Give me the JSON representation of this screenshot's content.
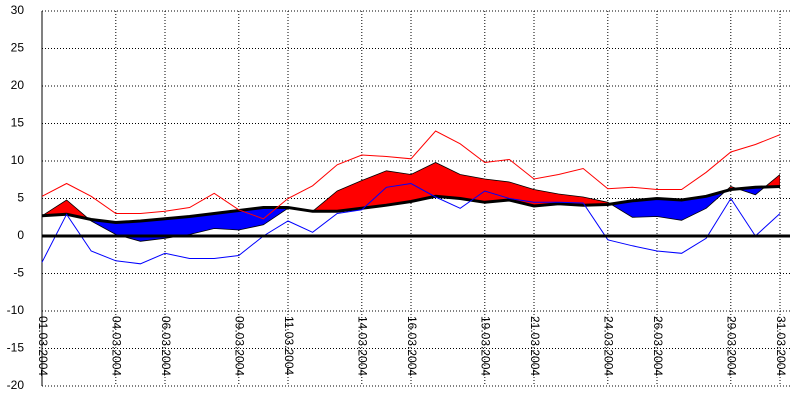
{
  "chart_data": {
    "type": "line",
    "categories": [
      "01.03.2004",
      null,
      null,
      "04.03.2004",
      null,
      "06.03.2004",
      null,
      null,
      "09.03.2004",
      null,
      "11.03.2004",
      null,
      null,
      "14.03.2004",
      null,
      "16.03.2004",
      null,
      null,
      "19.03.2004",
      null,
      "21.03.2004",
      null,
      null,
      "24.03.2004",
      null,
      "26.03.2004",
      null,
      null,
      "29.03.2004",
      null,
      "31.03.2004"
    ],
    "series": [
      {
        "color": "#000000",
        "width": 3,
        "values": [
          2.7,
          2.9,
          2.2,
          1.8,
          2.0,
          2.3,
          2.6,
          3.0,
          3.4,
          3.8,
          3.8,
          3.3,
          3.3,
          3.7,
          4.1,
          4.6,
          5.3,
          5.0,
          4.5,
          4.8,
          4.0,
          4.3,
          4.1,
          4.2,
          4.7,
          5.0,
          4.8,
          5.3,
          6.2,
          6.5,
          6.6
        ]
      },
      {
        "color": "#000000",
        "width": 0.8,
        "values": [
          2.7,
          4.8,
          2.0,
          0.2,
          -0.7,
          -0.3,
          0.2,
          1.0,
          0.8,
          1.5,
          3.7,
          3.3,
          6.0,
          7.4,
          8.7,
          8.2,
          9.8,
          8.2,
          7.6,
          7.2,
          6.2,
          5.6,
          5.2,
          4.5,
          2.5,
          2.6,
          2.1,
          3.7,
          6.6,
          5.5,
          8.2
        ]
      },
      {
        "color": "#ff0000",
        "width": 1,
        "values": [
          5.3,
          7.0,
          5.3,
          3.0,
          3.0,
          3.3,
          3.8,
          5.7,
          3.5,
          2.3,
          5.0,
          6.7,
          9.5,
          10.8,
          10.6,
          10.3,
          14.0,
          12.3,
          9.8,
          10.2,
          7.6,
          8.2,
          9.0,
          6.3,
          6.5,
          6.2,
          6.2,
          8.5,
          11.2,
          12.2,
          13.5
        ]
      },
      {
        "color": "#0000ff",
        "width": 1,
        "values": [
          -3.5,
          2.9,
          -2.0,
          -3.3,
          -3.7,
          -2.3,
          -3.0,
          -3.0,
          -2.6,
          0.0,
          2.0,
          0.5,
          3.0,
          3.5,
          6.5,
          7.0,
          5.2,
          3.7,
          6.0,
          5.0,
          4.5,
          4.5,
          4.4,
          -0.5,
          -1.3,
          -2.0,
          -2.3,
          -0.3,
          5.0,
          0.0,
          3.0
        ]
      }
    ],
    "fill_between": {
      "series": [
        1,
        0
      ],
      "above": "#ff0000",
      "below": "#0000ff"
    },
    "ylim": [
      -20,
      30
    ],
    "yticks": [
      -20,
      -15,
      -10,
      -5,
      0,
      5,
      10,
      15,
      20,
      25,
      30
    ],
    "zero_line": true,
    "grid": true
  }
}
